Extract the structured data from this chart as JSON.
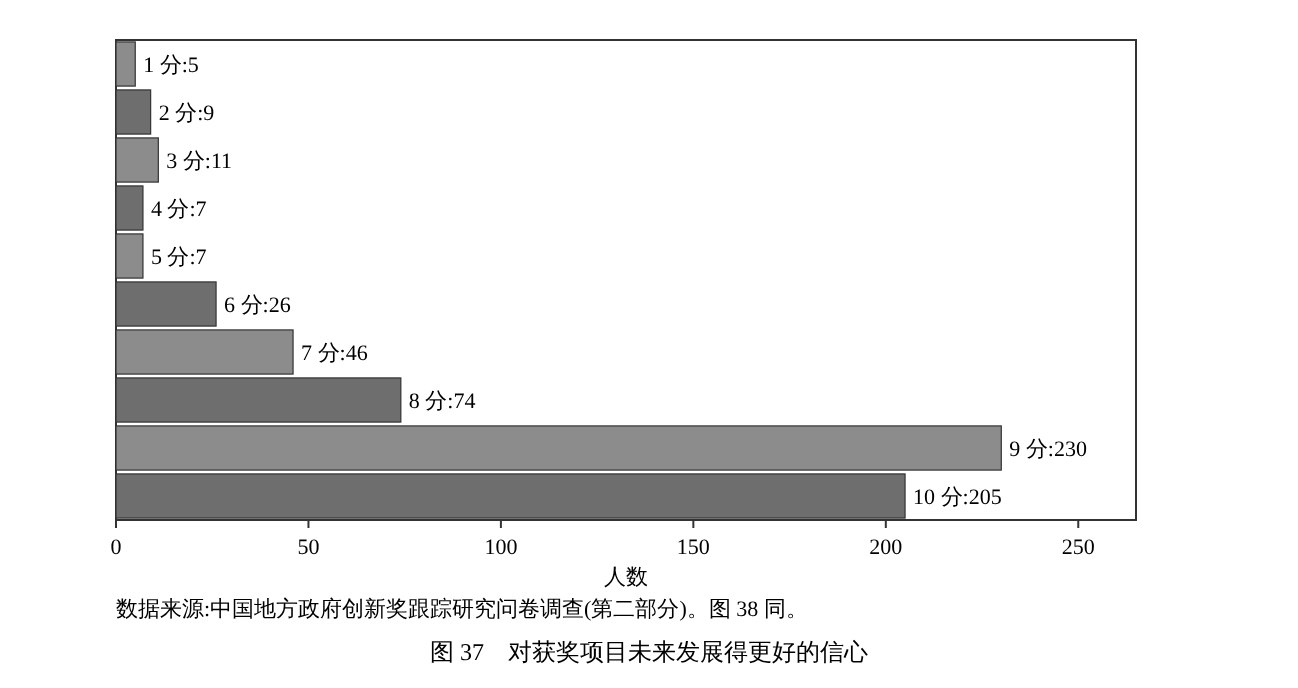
{
  "chart_data": {
    "type": "bar",
    "orientation": "horizontal",
    "title": "图 37　对获奖项目未来发展得更好的信心",
    "xlabel": "人数",
    "categories": [
      null,
      null,
      null,
      null,
      null,
      null,
      null,
      null,
      null,
      null
    ],
    "values": [
      5,
      9,
      11,
      7,
      7,
      26,
      46,
      74,
      230,
      205
    ],
    "value_labels": [
      "1 分:5",
      "2 分:9",
      "3 分:11",
      "4 分:7",
      "5 分:7",
      "6 分:26",
      "7 分:46",
      "8 分:74",
      "9 分:230",
      "10 分:205"
    ],
    "colors": [
      "#8c8c8c",
      "#6e6e6e",
      "#8c8c8c",
      "#6e6e6e",
      "#8c8c8c",
      "#6e6e6e",
      "#8c8c8c",
      "#6e6e6e",
      "#8c8c8c",
      "#6e6e6e"
    ],
    "xlim": [
      0,
      265
    ],
    "xticks": [
      0,
      50,
      100,
      150,
      200,
      250
    ],
    "grid": false,
    "annotations": [
      "数据来源:中国地方政府创新奖跟踪研究问卷调查(第二部分)。图 38 同。"
    ]
  }
}
